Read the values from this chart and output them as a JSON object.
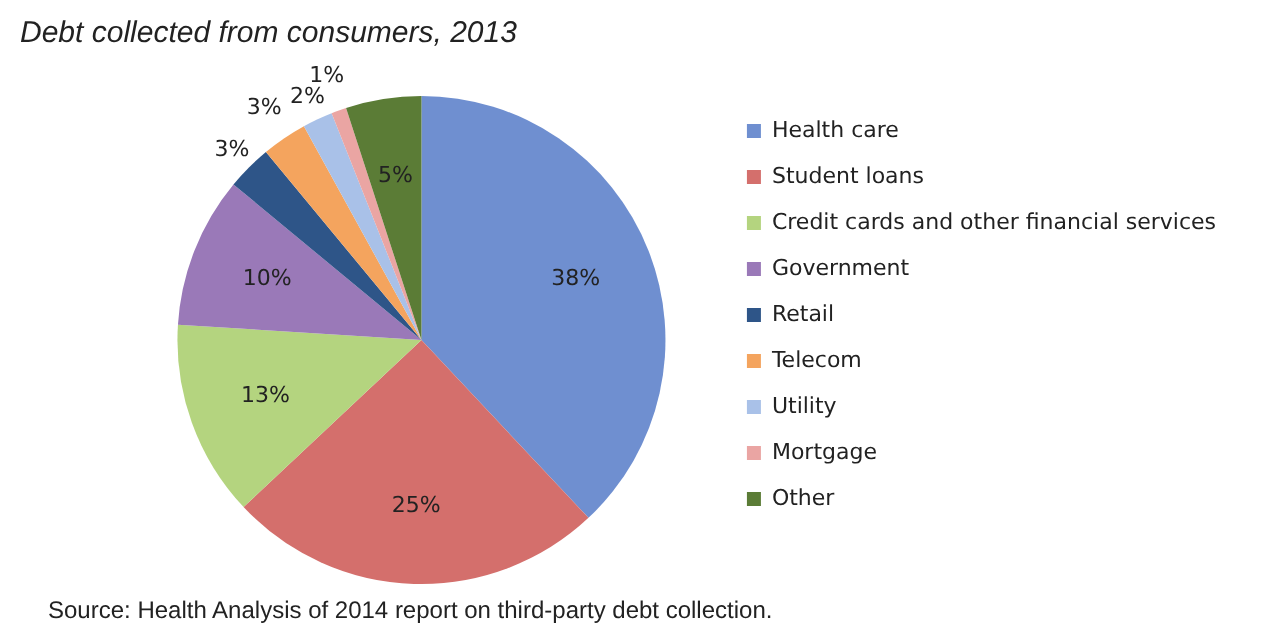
{
  "chart_data": {
    "type": "pie",
    "title": "Debt collected from consumers, 2013",
    "categories": [
      "Health care",
      "Student loans",
      "Credit cards and other financial services",
      "Government",
      "Retail",
      "Telecom",
      "Utility",
      "Mortgage",
      "Other"
    ],
    "values": [
      38,
      25,
      13,
      10,
      3,
      3,
      2,
      1,
      5
    ],
    "colors": [
      "#6f8fd0",
      "#d46f6c",
      "#b4d47f",
      "#9a79b8",
      "#2e5588",
      "#f4a45e",
      "#a9c1e8",
      "#eaa5a3",
      "#5b7c36"
    ],
    "value_labels": [
      "38%",
      "25%",
      "13%",
      "10%",
      "3%",
      "3%",
      "2%",
      "1%",
      "5%"
    ],
    "legend": "right",
    "annotations": [
      "Source: Health Analysis of 2014 report on third-party debt collection."
    ]
  }
}
